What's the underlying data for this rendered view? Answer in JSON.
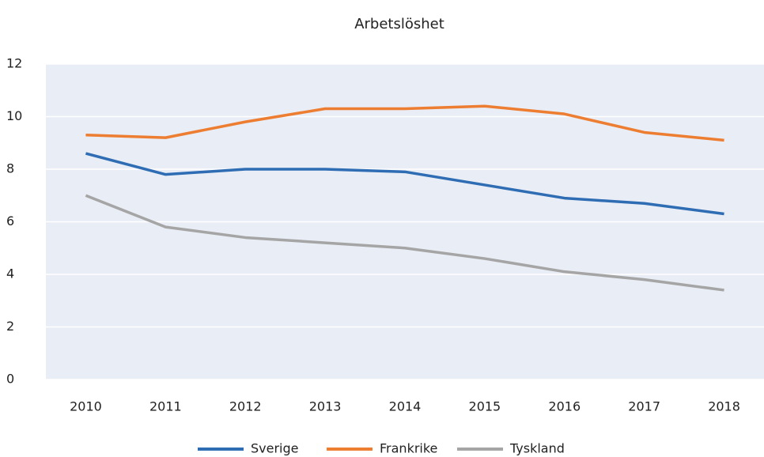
{
  "chart_data": {
    "type": "line",
    "title": "Arbetslöshet",
    "categories": [
      "2010",
      "2011",
      "2012",
      "2013",
      "2014",
      "2015",
      "2016",
      "2017",
      "2018"
    ],
    "series": [
      {
        "name": "Sverige",
        "color": "#2e6db4",
        "values": [
          8.6,
          7.8,
          8.0,
          8.0,
          7.9,
          7.4,
          6.9,
          6.7,
          6.3
        ]
      },
      {
        "name": "Frankrike",
        "color": "#ed7d31",
        "values": [
          9.3,
          9.2,
          9.8,
          10.3,
          10.3,
          10.4,
          10.1,
          9.4,
          9.1
        ]
      },
      {
        "name": "Tyskland",
        "color": "#a5a5a5",
        "values": [
          7.0,
          5.8,
          5.4,
          5.2,
          5.0,
          4.6,
          4.1,
          3.8,
          3.4
        ]
      }
    ],
    "ylim": [
      0,
      12
    ],
    "yticks": [
      0,
      2,
      4,
      6,
      8,
      10,
      12
    ],
    "grid": true,
    "legend": "bottom"
  }
}
